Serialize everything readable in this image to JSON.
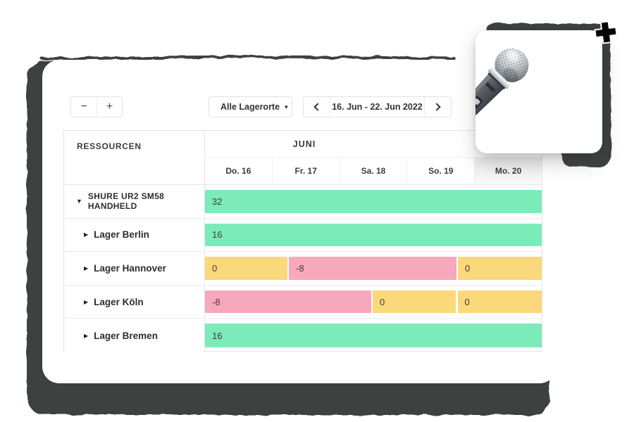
{
  "toolbar": {
    "zoom_out_label": "−",
    "zoom_in_label": "+",
    "location_filter": {
      "label": "Alle Lagerorte",
      "icon": "warehouse-icon",
      "caret_glyph": "▾"
    },
    "date_nav": {
      "prev_icon": "chevron-left",
      "range_label": "16. Jun - 22. Jun 2022",
      "next_icon": "chevron-right"
    }
  },
  "table": {
    "resources_header": "RESSOURCEN",
    "month_header": "JUNI",
    "day_headers": [
      "Do. 16",
      "Fr. 17",
      "Sa. 18",
      "So. 19",
      "Mo. 20"
    ],
    "rows": [
      {
        "label": "SHURE UR2 SM58 HANDHELD",
        "type": "parent",
        "expanded": true,
        "segments": [
          {
            "value": "32",
            "status": "available",
            "start_pct": 0,
            "width_pct": 100
          }
        ]
      },
      {
        "label": "Lager Berlin",
        "type": "child",
        "expanded": false,
        "segments": [
          {
            "value": "16",
            "status": "available",
            "start_pct": 0,
            "width_pct": 100
          }
        ]
      },
      {
        "label": "Lager Hannover",
        "type": "child",
        "expanded": false,
        "segments": [
          {
            "value": "0",
            "status": "warning",
            "start_pct": 0,
            "width_pct": 24.5
          },
          {
            "value": "-8",
            "status": "negative",
            "start_pct": 24.9,
            "width_pct": 49.8
          },
          {
            "value": "0",
            "status": "warning",
            "start_pct": 75.1,
            "width_pct": 24.9
          }
        ]
      },
      {
        "label": "Lager Köln",
        "type": "child",
        "expanded": false,
        "segments": [
          {
            "value": "-8",
            "status": "negative",
            "start_pct": 0,
            "width_pct": 49.3
          },
          {
            "value": "0",
            "status": "warning",
            "start_pct": 49.8,
            "width_pct": 24.6
          },
          {
            "value": "0",
            "status": "warning",
            "start_pct": 75.0,
            "width_pct": 25.0
          }
        ]
      },
      {
        "label": "Lager Bremen",
        "type": "child",
        "expanded": false,
        "segments": [
          {
            "value": "16",
            "status": "available",
            "start_pct": 0,
            "width_pct": 100
          }
        ]
      }
    ]
  },
  "icons": {
    "expand_open": "▼",
    "expand_closed": "▶"
  },
  "colors": {
    "available": "#7DEBB9",
    "warning": "#FBD87B",
    "negative": "#F8A8BD",
    "accent_blue": "#2F80ED",
    "sketch_shadow": "#3E4241"
  },
  "overlay": {
    "product_image": "microphone-photo",
    "cursor": "plus-cursor"
  }
}
